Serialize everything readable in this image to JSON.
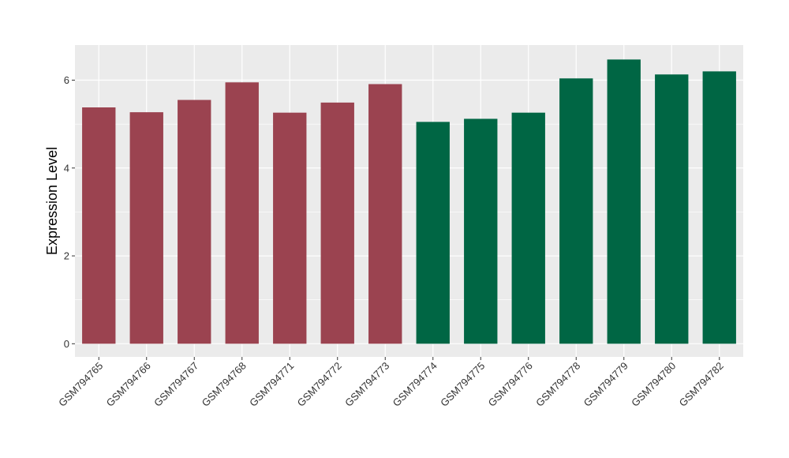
{
  "chart_data": {
    "type": "bar",
    "title": "",
    "xlabel": "",
    "ylabel": "Expression Level",
    "ylim": [
      -0.3,
      6.8
    ],
    "yticks": [
      0,
      2,
      4,
      6
    ],
    "grid": true,
    "legend": "none",
    "background_color": "#ebebeb",
    "grid_color": "#ffffff",
    "categories": [
      "GSM794765",
      "GSM794766",
      "GSM794767",
      "GSM794768",
      "GSM794771",
      "GSM794772",
      "GSM794773",
      "GSM794774",
      "GSM794775",
      "GSM794776",
      "GSM794778",
      "GSM794779",
      "GSM794780",
      "GSM794782"
    ],
    "values": [
      5.38,
      5.27,
      5.55,
      5.95,
      5.26,
      5.49,
      5.91,
      5.05,
      5.12,
      5.26,
      6.04,
      6.47,
      6.13,
      6.2
    ],
    "bar_colors": [
      "#9b4350",
      "#9b4350",
      "#9b4350",
      "#9b4350",
      "#9b4350",
      "#9b4350",
      "#9b4350",
      "#006644",
      "#006644",
      "#006644",
      "#006644",
      "#006644",
      "#006644",
      "#006644"
    ]
  }
}
